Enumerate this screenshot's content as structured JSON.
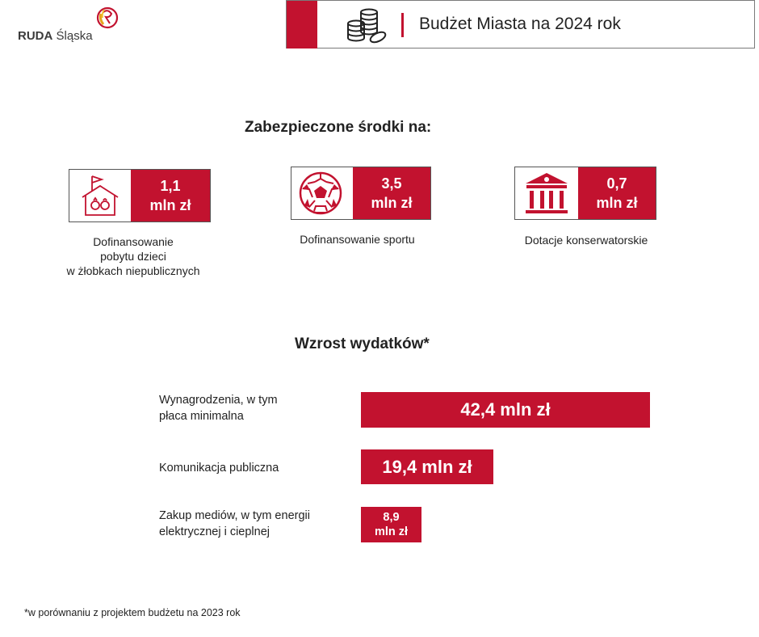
{
  "header": {
    "logo_bold": "RUDA",
    "logo_light": "Śląska",
    "title": "Budżet Miasta na 2024 rok",
    "icon": "coins-icon",
    "accent": "#c2122f"
  },
  "secured": {
    "title": "Zabezpieczone środki na:",
    "items": [
      {
        "value": "1,1",
        "unit": "mln zł",
        "caption1": "Dofinansowanie",
        "caption2": "pobytu dzieci",
        "caption3": "w żłobkach niepublicznych",
        "icon": "house-kids-icon"
      },
      {
        "value": "3,5",
        "unit": "mln zł",
        "caption1": "Dofinansowanie sportu",
        "icon": "soccer-ball-icon"
      },
      {
        "value": "0,7",
        "unit": "mln zł",
        "caption1": "Dotacje konserwatorskie",
        "icon": "monument-building-icon"
      }
    ]
  },
  "growth": {
    "title": "Wzrost wydatków*",
    "footnote": "*w porównaniu z projektem budżetu na 2023 rok"
  },
  "chart_data": {
    "type": "bar",
    "orientation": "horizontal",
    "title": "Wzrost wydatków*",
    "unit": "mln zł",
    "categories": [
      "Wynagrodzenia, w tym płaca minimalna",
      "Komunikacja publiczna",
      "Zakup mediów, w tym energii elektrycznej i cieplnej"
    ],
    "label_lines": [
      [
        "Wynagrodzenia, w tym",
        "płaca minimalna"
      ],
      [
        "Komunikacja publiczna"
      ],
      [
        "Zakup mediów, w tym energii",
        "elektrycznej i cieplnej"
      ]
    ],
    "values": [
      42.4,
      19.4,
      8.9
    ],
    "data_labels": [
      "42,4 mln zł",
      "19,4 mln zł",
      "8,9 mln zł"
    ],
    "color": "#c2122f"
  }
}
